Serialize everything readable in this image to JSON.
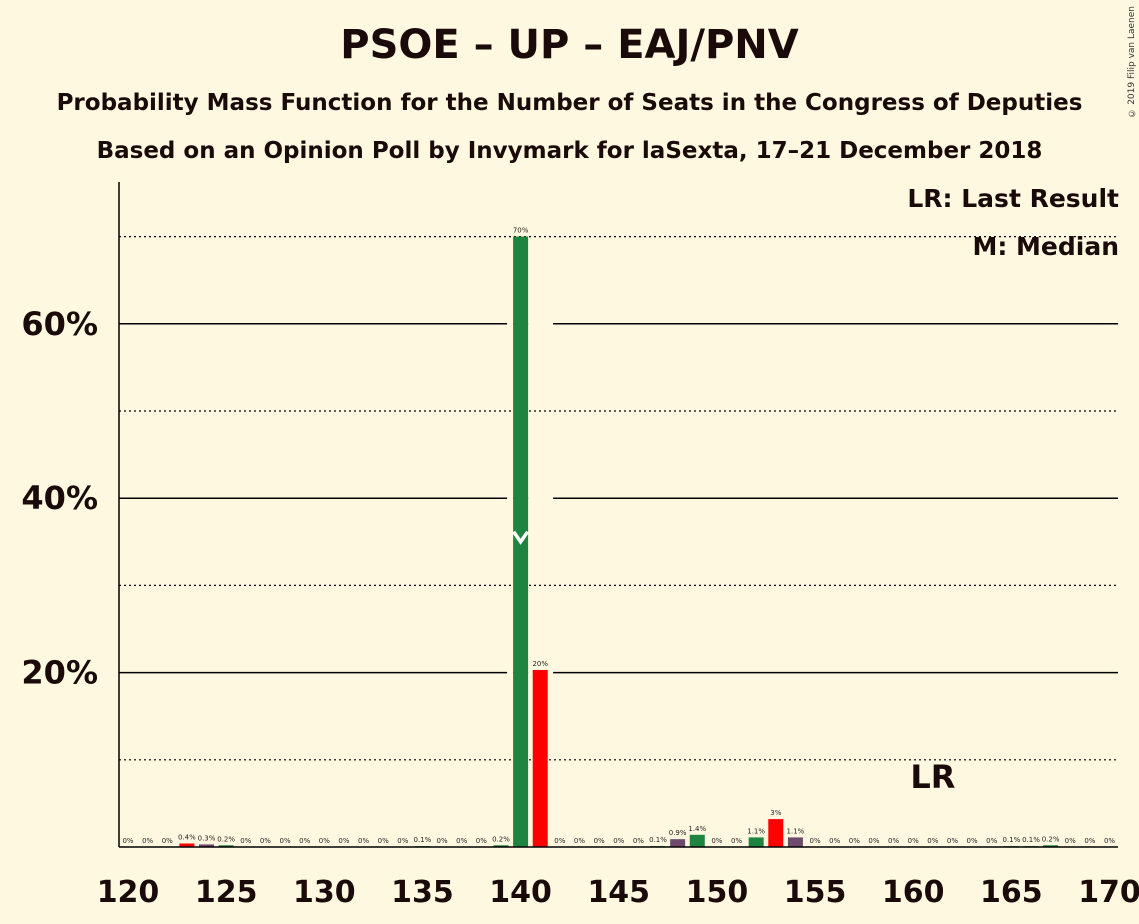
{
  "title": "PSOE – UP – EAJ/PNV",
  "subtitle1": "Probability Mass Function for the Number of Seats in the Congress of Deputies",
  "subtitle2": "Based on an Opinion Poll by Invymark for laSexta, 17–21 December 2018",
  "copyright": "© 2019 Filip van Laenen",
  "legend": {
    "lr": "LR: Last Result",
    "m": "M: Median"
  },
  "colors": {
    "background": "#fff8e1",
    "green": "#1e8440",
    "red": "#ff0000",
    "purple": "#6e4a6e"
  },
  "chart_data": {
    "type": "bar",
    "xlim": [
      120,
      170
    ],
    "ylim": [
      0,
      76
    ],
    "y_ticks": [
      20,
      40,
      60
    ],
    "y_tick_labels": [
      "20%",
      "40%",
      "60%"
    ],
    "y_minor_gridlines": [
      10,
      30,
      50,
      70
    ],
    "x_ticks": [
      120,
      125,
      130,
      135,
      140,
      145,
      150,
      155,
      160,
      165,
      170
    ],
    "median": 140,
    "median_marker_value": 35,
    "last_result": 161,
    "last_result_label": "LR",
    "bars": [
      {
        "x": 120,
        "value": 0,
        "label": "0%",
        "color": "green"
      },
      {
        "x": 121,
        "value": 0,
        "label": "0%",
        "color": "green"
      },
      {
        "x": 122,
        "value": 0,
        "label": "0%",
        "color": "green"
      },
      {
        "x": 123,
        "value": 0.4,
        "label": "0.4%",
        "color": "red"
      },
      {
        "x": 124,
        "value": 0.3,
        "label": "0.3%",
        "color": "purple"
      },
      {
        "x": 125,
        "value": 0.2,
        "label": "0.2%",
        "color": "green"
      },
      {
        "x": 126,
        "value": 0,
        "label": "0%",
        "color": "green"
      },
      {
        "x": 127,
        "value": 0,
        "label": "0%",
        "color": "green"
      },
      {
        "x": 128,
        "value": 0,
        "label": "0%",
        "color": "green"
      },
      {
        "x": 129,
        "value": 0,
        "label": "0%",
        "color": "green"
      },
      {
        "x": 130,
        "value": 0,
        "label": "0%",
        "color": "green"
      },
      {
        "x": 131,
        "value": 0,
        "label": "0%",
        "color": "green"
      },
      {
        "x": 132,
        "value": 0,
        "label": "0%",
        "color": "green"
      },
      {
        "x": 133,
        "value": 0,
        "label": "0%",
        "color": "green"
      },
      {
        "x": 134,
        "value": 0,
        "label": "0%",
        "color": "green"
      },
      {
        "x": 135,
        "value": 0.1,
        "label": "0.1%",
        "color": "green"
      },
      {
        "x": 136,
        "value": 0,
        "label": "0%",
        "color": "green"
      },
      {
        "x": 137,
        "value": 0,
        "label": "0%",
        "color": "green"
      },
      {
        "x": 138,
        "value": 0,
        "label": "0%",
        "color": "green"
      },
      {
        "x": 139,
        "value": 0.2,
        "label": "0.2%",
        "color": "green"
      },
      {
        "x": 140,
        "value": 70,
        "label": "70%",
        "color": "green"
      },
      {
        "x": 141,
        "value": 20.3,
        "label": "20%",
        "color": "red"
      },
      {
        "x": 142,
        "value": 0,
        "label": "0%",
        "color": "green"
      },
      {
        "x": 143,
        "value": 0,
        "label": "0%",
        "color": "green"
      },
      {
        "x": 144,
        "value": 0,
        "label": "0%",
        "color": "green"
      },
      {
        "x": 145,
        "value": 0,
        "label": "0%",
        "color": "green"
      },
      {
        "x": 146,
        "value": 0,
        "label": "0%",
        "color": "green"
      },
      {
        "x": 147,
        "value": 0.1,
        "label": "0.1%",
        "color": "green"
      },
      {
        "x": 148,
        "value": 0.9,
        "label": "0.9%",
        "color": "purple"
      },
      {
        "x": 149,
        "value": 1.4,
        "label": "1.4%",
        "color": "green"
      },
      {
        "x": 150,
        "value": 0,
        "label": "0%",
        "color": "green"
      },
      {
        "x": 151,
        "value": 0,
        "label": "0%",
        "color": "green"
      },
      {
        "x": 152,
        "value": 1.1,
        "label": "1.1%",
        "color": "green"
      },
      {
        "x": 153,
        "value": 3.2,
        "label": "3%",
        "color": "red"
      },
      {
        "x": 154,
        "value": 1.1,
        "label": "1.1%",
        "color": "purple"
      },
      {
        "x": 155,
        "value": 0,
        "label": "0%",
        "color": "green"
      },
      {
        "x": 156,
        "value": 0,
        "label": "0%",
        "color": "green"
      },
      {
        "x": 157,
        "value": 0,
        "label": "0%",
        "color": "green"
      },
      {
        "x": 158,
        "value": 0,
        "label": "0%",
        "color": "green"
      },
      {
        "x": 159,
        "value": 0,
        "label": "0%",
        "color": "green"
      },
      {
        "x": 160,
        "value": 0,
        "label": "0%",
        "color": "green"
      },
      {
        "x": 161,
        "value": 0,
        "label": "0%",
        "color": "green"
      },
      {
        "x": 162,
        "value": 0,
        "label": "0%",
        "color": "green"
      },
      {
        "x": 163,
        "value": 0,
        "label": "0%",
        "color": "green"
      },
      {
        "x": 164,
        "value": 0,
        "label": "0%",
        "color": "green"
      },
      {
        "x": 165,
        "value": 0.1,
        "label": "0.1%",
        "color": "green"
      },
      {
        "x": 166,
        "value": 0.1,
        "label": "0.1%",
        "color": "green"
      },
      {
        "x": 167,
        "value": 0.2,
        "label": "0.2%",
        "color": "green"
      },
      {
        "x": 168,
        "value": 0,
        "label": "0%",
        "color": "green"
      },
      {
        "x": 169,
        "value": 0,
        "label": "0%",
        "color": "green"
      },
      {
        "x": 170,
        "value": 0,
        "label": "0%",
        "color": "green"
      }
    ]
  }
}
